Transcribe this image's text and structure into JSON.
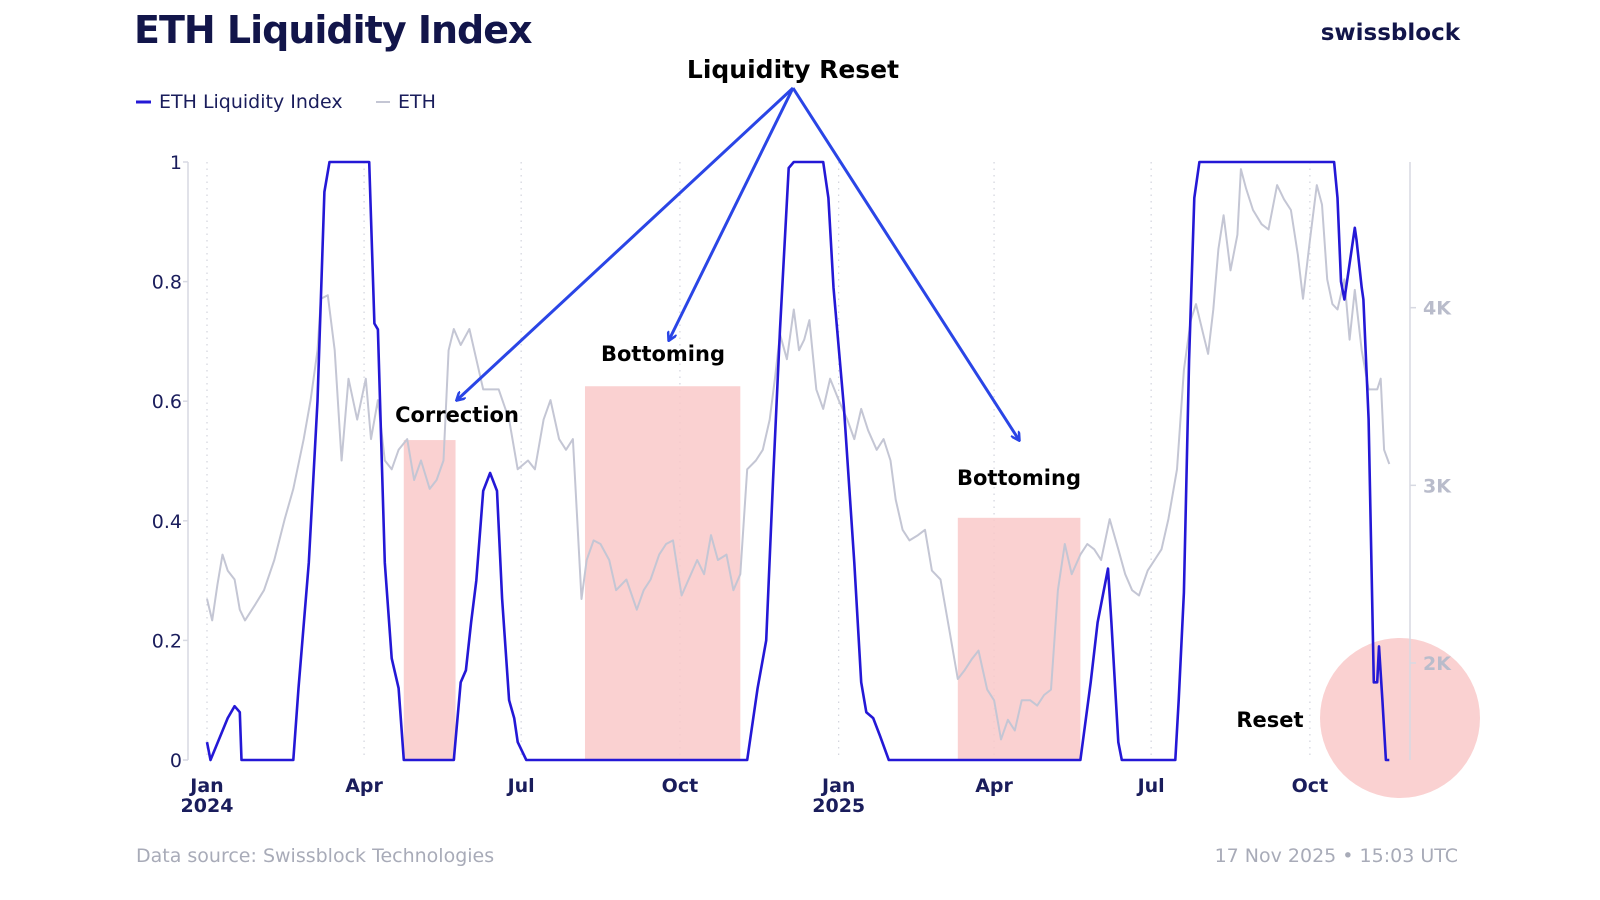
{
  "header": {
    "title": "ETH Liquidity Index",
    "brand": "swissblock"
  },
  "legend": [
    {
      "label": "ETH Liquidity Index",
      "color": "#2418d6"
    },
    {
      "label": "ETH",
      "color": "#c4c6d4"
    }
  ],
  "footer": {
    "source": "Data source: Swissblock Technologies",
    "timestamp": "17 Nov 2025 • 15:03 UTC"
  },
  "chart_data": {
    "type": "line",
    "title": "ETH Liquidity Index",
    "x_axis": {
      "type": "date",
      "range": [
        "2024-01-01",
        "2025-11-16"
      ],
      "ticks": [
        {
          "date": "2024-01-01",
          "label": "Jan",
          "year": "2024"
        },
        {
          "date": "2024-04-01",
          "label": "Apr"
        },
        {
          "date": "2024-07-01",
          "label": "Jul"
        },
        {
          "date": "2024-10-01",
          "label": "Oct"
        },
        {
          "date": "2025-01-01",
          "label": "Jan",
          "year": "2025"
        },
        {
          "date": "2025-04-01",
          "label": "Apr"
        },
        {
          "date": "2025-07-01",
          "label": "Jul"
        },
        {
          "date": "2025-10-01",
          "label": "Oct"
        }
      ],
      "grid": "dotted vertical"
    },
    "y_left": {
      "range": [
        0,
        1
      ],
      "ticks": [
        "0",
        "0.2",
        "0.4",
        "0.6",
        "0.8",
        "1"
      ]
    },
    "y_right": {
      "range": [
        1454,
        4820
      ],
      "ticks": [
        {
          "v": 2000,
          "label": "2K"
        },
        {
          "v": 3000,
          "label": "3K"
        },
        {
          "v": 4000,
          "label": "4K"
        }
      ]
    },
    "legend_position": "top-left",
    "series": [
      {
        "name": "ETH Liquidity Index",
        "axis": "left",
        "color": "#2418d6",
        "points": [
          [
            "2024-01-01",
            0.03
          ],
          [
            "2024-01-03",
            0
          ],
          [
            "2024-01-13",
            0.07
          ],
          [
            "2024-01-17",
            0.09
          ],
          [
            "2024-01-20",
            0.08
          ],
          [
            "2024-01-21",
            0
          ],
          [
            "2024-02-20",
            0
          ],
          [
            "2024-02-23",
            0.12
          ],
          [
            "2024-02-29",
            0.33
          ],
          [
            "2024-03-05",
            0.6
          ],
          [
            "2024-03-09",
            0.95
          ],
          [
            "2024-03-12",
            1
          ],
          [
            "2024-04-04",
            1
          ],
          [
            "2024-04-07",
            0.73
          ],
          [
            "2024-04-09",
            0.72
          ],
          [
            "2024-04-13",
            0.33
          ],
          [
            "2024-04-17",
            0.17
          ],
          [
            "2024-04-21",
            0.12
          ],
          [
            "2024-04-24",
            0
          ],
          [
            "2024-05-23",
            0
          ],
          [
            "2024-05-27",
            0.13
          ],
          [
            "2024-05-30",
            0.15
          ],
          [
            "2024-06-02",
            0.23
          ],
          [
            "2024-06-05",
            0.3
          ],
          [
            "2024-06-09",
            0.45
          ],
          [
            "2024-06-13",
            0.48
          ],
          [
            "2024-06-17",
            0.45
          ],
          [
            "2024-06-20",
            0.27
          ],
          [
            "2024-06-24",
            0.1
          ],
          [
            "2024-06-27",
            0.07
          ],
          [
            "2024-06-29",
            0.03
          ],
          [
            "2024-07-04",
            0
          ],
          [
            "2024-11-09",
            0
          ],
          [
            "2024-11-15",
            0.12
          ],
          [
            "2024-11-20",
            0.2
          ],
          [
            "2024-11-24",
            0.47
          ],
          [
            "2024-11-28",
            0.72
          ],
          [
            "2024-12-03",
            0.99
          ],
          [
            "2024-12-06",
            1
          ],
          [
            "2024-12-23",
            1
          ],
          [
            "2024-12-26",
            0.94
          ],
          [
            "2024-12-29",
            0.79
          ],
          [
            "2025-01-04",
            0.59
          ],
          [
            "2025-01-10",
            0.33
          ],
          [
            "2025-01-14",
            0.13
          ],
          [
            "2025-01-17",
            0.08
          ],
          [
            "2025-01-21",
            0.07
          ],
          [
            "2025-01-25",
            0.04
          ],
          [
            "2025-01-30",
            0
          ],
          [
            "2025-05-21",
            0
          ],
          [
            "2025-05-27",
            0.13
          ],
          [
            "2025-05-31",
            0.23
          ],
          [
            "2025-06-06",
            0.32
          ],
          [
            "2025-06-08",
            0.23
          ],
          [
            "2025-06-12",
            0.03
          ],
          [
            "2025-06-14",
            0
          ],
          [
            "2025-07-15",
            0
          ],
          [
            "2025-07-17",
            0.1
          ],
          [
            "2025-07-20",
            0.28
          ],
          [
            "2025-07-23",
            0.67
          ],
          [
            "2025-07-26",
            0.94
          ],
          [
            "2025-07-29",
            1
          ],
          [
            "2025-10-15",
            1
          ],
          [
            "2025-10-17",
            0.94
          ],
          [
            "2025-10-19",
            0.8
          ],
          [
            "2025-10-21",
            0.77
          ],
          [
            "2025-10-24",
            0.83
          ],
          [
            "2025-10-27",
            0.89
          ],
          [
            "2025-10-28",
            0.87
          ],
          [
            "2025-10-31",
            0.79
          ],
          [
            "2025-11-01",
            0.77
          ],
          [
            "2025-11-04",
            0.57
          ],
          [
            "2025-11-07",
            0.13
          ],
          [
            "2025-11-09",
            0.13
          ],
          [
            "2025-11-10",
            0.19
          ],
          [
            "2025-11-12",
            0.1
          ],
          [
            "2025-11-14",
            0
          ],
          [
            "2025-11-16",
            0
          ]
        ]
      },
      {
        "name": "ETH",
        "axis": "right",
        "color": "#c4c6d4",
        "points": [
          [
            "2024-01-01",
            2360
          ],
          [
            "2024-01-04",
            2240
          ],
          [
            "2024-01-07",
            2440
          ],
          [
            "2024-01-10",
            2610
          ],
          [
            "2024-01-13",
            2520
          ],
          [
            "2024-01-17",
            2470
          ],
          [
            "2024-01-20",
            2300
          ],
          [
            "2024-01-23",
            2240
          ],
          [
            "2024-01-29",
            2330
          ],
          [
            "2024-02-03",
            2410
          ],
          [
            "2024-02-09",
            2580
          ],
          [
            "2024-02-15",
            2810
          ],
          [
            "2024-02-20",
            2980
          ],
          [
            "2024-02-26",
            3260
          ],
          [
            "2024-03-01",
            3480
          ],
          [
            "2024-03-05",
            3760
          ],
          [
            "2024-03-07",
            4050
          ],
          [
            "2024-03-11",
            4070
          ],
          [
            "2024-03-15",
            3760
          ],
          [
            "2024-03-19",
            3140
          ],
          [
            "2024-03-23",
            3600
          ],
          [
            "2024-03-28",
            3370
          ],
          [
            "2024-04-02",
            3600
          ],
          [
            "2024-04-05",
            3260
          ],
          [
            "2024-04-09",
            3480
          ],
          [
            "2024-04-13",
            3140
          ],
          [
            "2024-04-17",
            3090
          ],
          [
            "2024-04-21",
            3200
          ],
          [
            "2024-04-26",
            3260
          ],
          [
            "2024-04-30",
            3030
          ],
          [
            "2024-05-04",
            3140
          ],
          [
            "2024-05-09",
            2980
          ],
          [
            "2024-05-13",
            3030
          ],
          [
            "2024-05-17",
            3140
          ],
          [
            "2024-05-20",
            3760
          ],
          [
            "2024-05-23",
            3880
          ],
          [
            "2024-05-27",
            3790
          ],
          [
            "2024-06-01",
            3880
          ],
          [
            "2024-06-05",
            3710
          ],
          [
            "2024-06-09",
            3540
          ],
          [
            "2024-06-18",
            3540
          ],
          [
            "2024-06-24",
            3370
          ],
          [
            "2024-06-29",
            3090
          ],
          [
            "2024-07-05",
            3140
          ],
          [
            "2024-07-09",
            3090
          ],
          [
            "2024-07-14",
            3370
          ],
          [
            "2024-07-18",
            3480
          ],
          [
            "2024-07-23",
            3260
          ],
          [
            "2024-07-27",
            3200
          ],
          [
            "2024-07-31",
            3260
          ],
          [
            "2024-08-05",
            2360
          ],
          [
            "2024-08-08",
            2580
          ],
          [
            "2024-08-12",
            2690
          ],
          [
            "2024-08-16",
            2670
          ],
          [
            "2024-08-21",
            2580
          ],
          [
            "2024-08-25",
            2410
          ],
          [
            "2024-08-31",
            2470
          ],
          [
            "2024-09-06",
            2300
          ],
          [
            "2024-09-10",
            2410
          ],
          [
            "2024-09-14",
            2470
          ],
          [
            "2024-09-19",
            2610
          ],
          [
            "2024-09-23",
            2670
          ],
          [
            "2024-09-27",
            2690
          ],
          [
            "2024-10-02",
            2380
          ],
          [
            "2024-10-06",
            2470
          ],
          [
            "2024-10-11",
            2580
          ],
          [
            "2024-10-15",
            2500
          ],
          [
            "2024-10-19",
            2720
          ],
          [
            "2024-10-23",
            2580
          ],
          [
            "2024-10-28",
            2610
          ],
          [
            "2024-11-01",
            2410
          ],
          [
            "2024-11-05",
            2500
          ],
          [
            "2024-11-09",
            3090
          ],
          [
            "2024-11-14",
            3140
          ],
          [
            "2024-11-18",
            3200
          ],
          [
            "2024-11-22",
            3370
          ],
          [
            "2024-11-25",
            3600
          ],
          [
            "2024-11-28",
            3850
          ],
          [
            "2024-12-02",
            3710
          ],
          [
            "2024-12-06",
            3990
          ],
          [
            "2024-12-09",
            3760
          ],
          [
            "2024-12-12",
            3820
          ],
          [
            "2024-12-15",
            3930
          ],
          [
            "2024-12-19",
            3540
          ],
          [
            "2024-12-23",
            3430
          ],
          [
            "2024-12-27",
            3600
          ],
          [
            "2025-01-01",
            3480
          ],
          [
            "2025-01-06",
            3370
          ],
          [
            "2025-01-10",
            3260
          ],
          [
            "2025-01-14",
            3430
          ],
          [
            "2025-01-18",
            3310
          ],
          [
            "2025-01-23",
            3200
          ],
          [
            "2025-01-27",
            3260
          ],
          [
            "2025-01-31",
            3140
          ],
          [
            "2025-02-03",
            2920
          ],
          [
            "2025-02-07",
            2750
          ],
          [
            "2025-02-11",
            2690
          ],
          [
            "2025-02-16",
            2720
          ],
          [
            "2025-02-20",
            2750
          ],
          [
            "2025-02-24",
            2520
          ],
          [
            "2025-03-01",
            2470
          ],
          [
            "2025-03-06",
            2190
          ],
          [
            "2025-03-11",
            1910
          ],
          [
            "2025-03-15",
            1960
          ],
          [
            "2025-03-19",
            2020
          ],
          [
            "2025-03-23",
            2070
          ],
          [
            "2025-03-28",
            1850
          ],
          [
            "2025-04-01",
            1790
          ],
          [
            "2025-04-05",
            1570
          ],
          [
            "2025-04-09",
            1680
          ],
          [
            "2025-04-13",
            1620
          ],
          [
            "2025-04-17",
            1790
          ],
          [
            "2025-04-22",
            1790
          ],
          [
            "2025-04-26",
            1760
          ],
          [
            "2025-04-30",
            1820
          ],
          [
            "2025-05-04",
            1850
          ],
          [
            "2025-05-08",
            2410
          ],
          [
            "2025-05-12",
            2670
          ],
          [
            "2025-05-16",
            2500
          ],
          [
            "2025-05-21",
            2610
          ],
          [
            "2025-05-25",
            2670
          ],
          [
            "2025-05-29",
            2640
          ],
          [
            "2025-06-02",
            2580
          ],
          [
            "2025-06-07",
            2810
          ],
          [
            "2025-06-12",
            2640
          ],
          [
            "2025-06-16",
            2500
          ],
          [
            "2025-06-20",
            2410
          ],
          [
            "2025-06-24",
            2380
          ],
          [
            "2025-06-29",
            2520
          ],
          [
            "2025-07-03",
            2580
          ],
          [
            "2025-07-07",
            2640
          ],
          [
            "2025-07-11",
            2810
          ],
          [
            "2025-07-16",
            3090
          ],
          [
            "2025-07-20",
            3650
          ],
          [
            "2025-07-24",
            3930
          ],
          [
            "2025-07-27",
            4020
          ],
          [
            "2025-08-01",
            3820
          ],
          [
            "2025-08-03",
            3740
          ],
          [
            "2025-08-06",
            3990
          ],
          [
            "2025-08-09",
            4330
          ],
          [
            "2025-08-12",
            4520
          ],
          [
            "2025-08-16",
            4210
          ],
          [
            "2025-08-20",
            4410
          ],
          [
            "2025-08-22",
            4780
          ],
          [
            "2025-08-25",
            4670
          ],
          [
            "2025-08-29",
            4550
          ],
          [
            "2025-09-03",
            4470
          ],
          [
            "2025-09-07",
            4440
          ],
          [
            "2025-09-12",
            4690
          ],
          [
            "2025-09-16",
            4610
          ],
          [
            "2025-09-20",
            4550
          ],
          [
            "2025-09-24",
            4300
          ],
          [
            "2025-09-27",
            4050
          ],
          [
            "2025-10-01",
            4380
          ],
          [
            "2025-10-05",
            4690
          ],
          [
            "2025-10-08",
            4580
          ],
          [
            "2025-10-11",
            4160
          ],
          [
            "2025-10-14",
            4020
          ],
          [
            "2025-10-17",
            3990
          ],
          [
            "2025-10-21",
            4160
          ],
          [
            "2025-10-24",
            3820
          ],
          [
            "2025-10-27",
            4100
          ],
          [
            "2025-10-31",
            3760
          ],
          [
            "2025-11-04",
            3540
          ],
          [
            "2025-11-09",
            3540
          ],
          [
            "2025-11-11",
            3600
          ],
          [
            "2025-11-13",
            3200
          ],
          [
            "2025-11-16",
            3120
          ]
        ]
      }
    ],
    "annotations": {
      "headline": "Liquidity Reset",
      "regions": [
        {
          "label": "Correction",
          "start": "2024-04-24",
          "end": "2024-05-24",
          "top": 0.535,
          "color": "#f9c9c9"
        },
        {
          "label": "Bottoming",
          "start": "2024-08-07",
          "end": "2024-11-05",
          "top": 0.625,
          "color": "#f9c9c9"
        },
        {
          "label": "Bottoming",
          "start": "2025-03-11",
          "end": "2025-05-21",
          "top": 0.405,
          "color": "#f9c9c9"
        }
      ],
      "reset": {
        "label": "Reset",
        "color": "#f9c9c9"
      },
      "arrow_color": "#2a45e6"
    }
  }
}
